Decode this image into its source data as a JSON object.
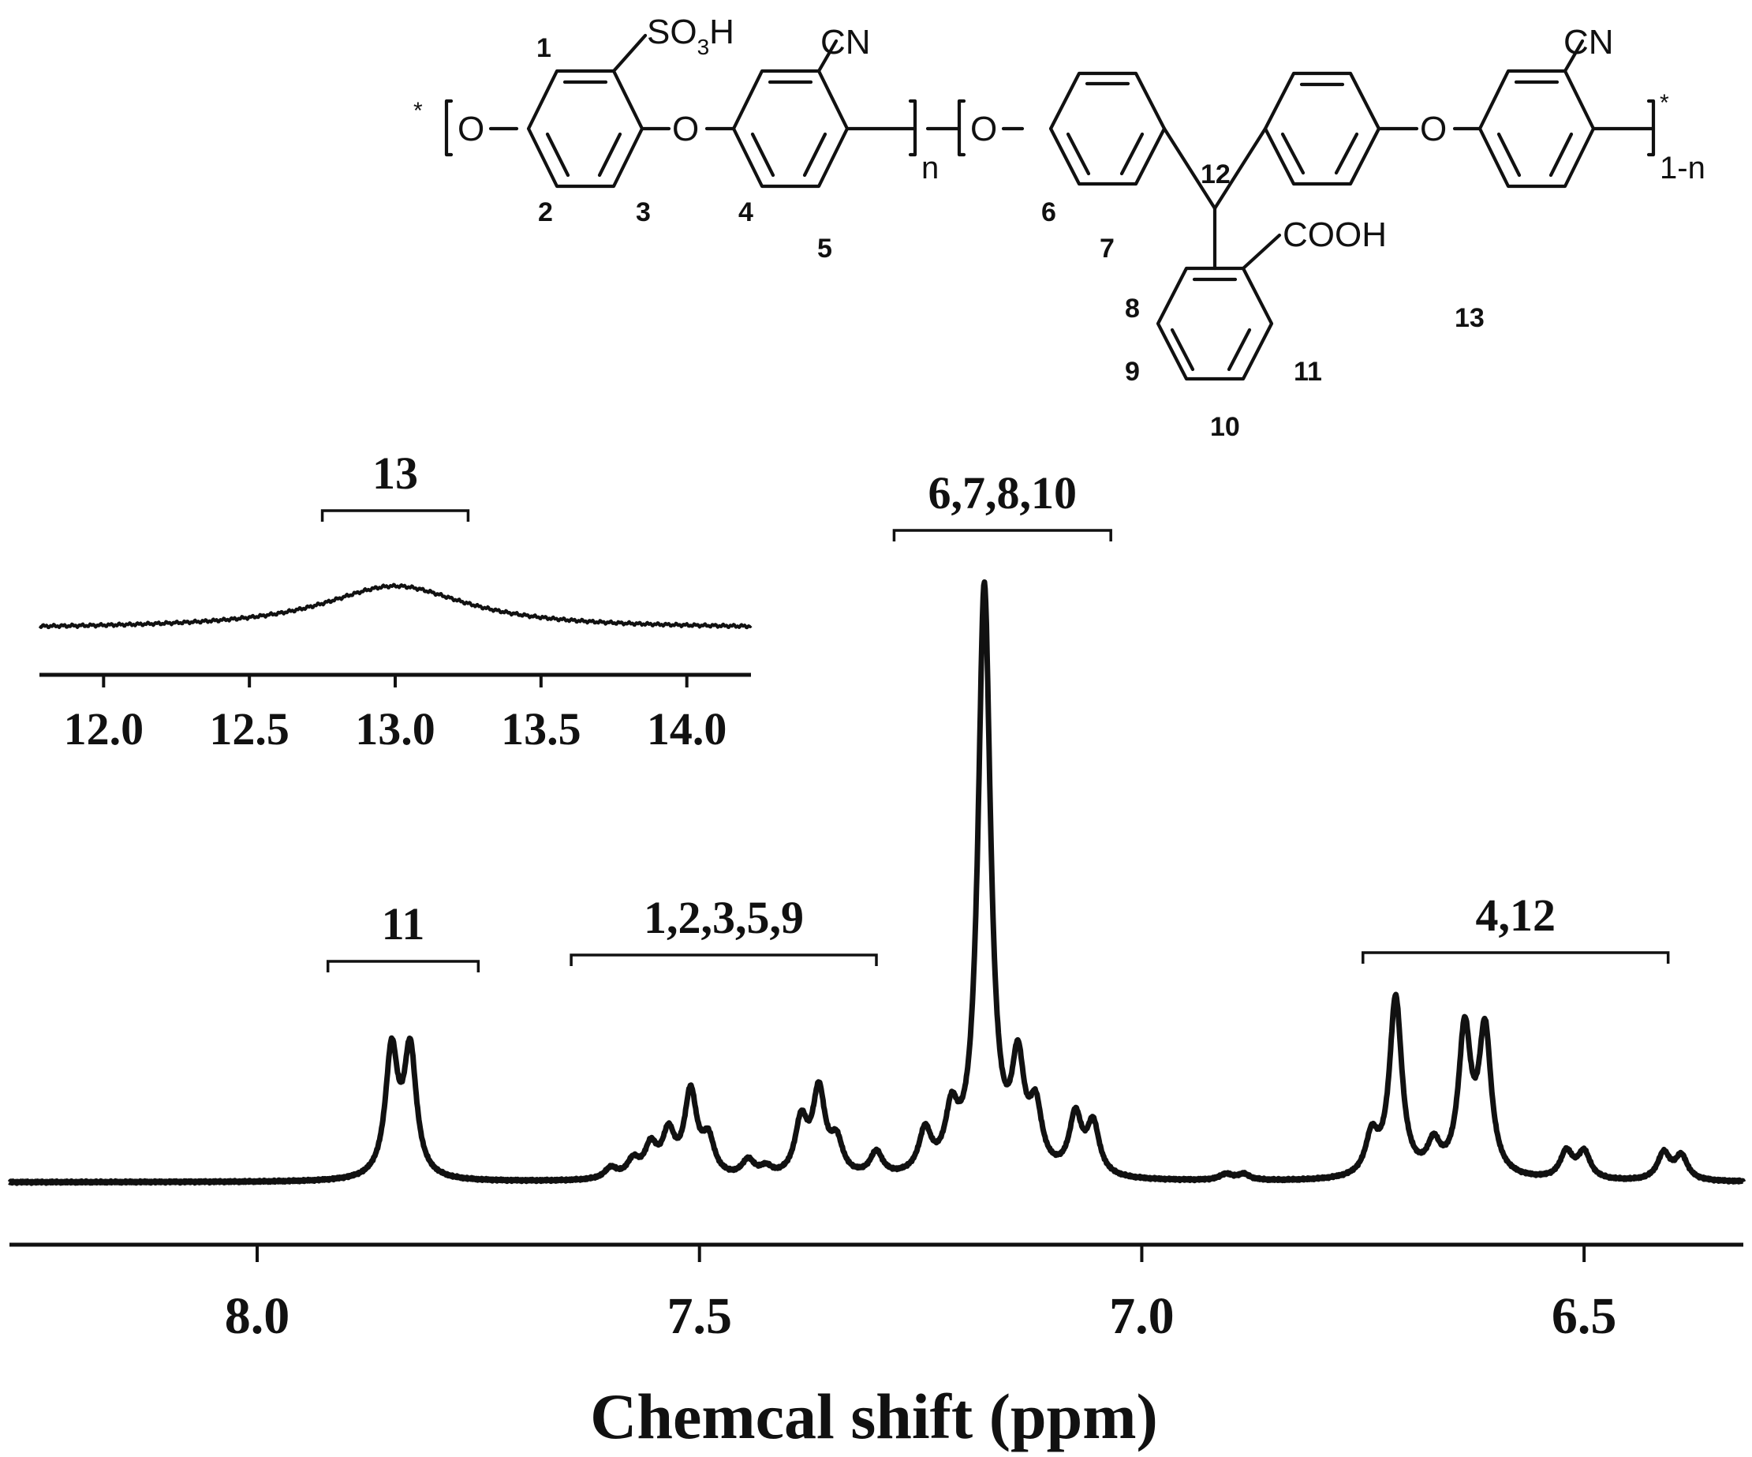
{
  "chart_data": [
    {
      "type": "line",
      "panel": "main",
      "xlabel": "Chemcal shift (ppm)",
      "x_reversed": true,
      "xlim": [
        8.28,
        6.32
      ],
      "ticks": [
        "8.0",
        "7.5",
        "7.0",
        "6.5"
      ],
      "peaks": [
        {
          "shift": 7.848,
          "intensity": 0.21
        },
        {
          "shift": 7.827,
          "intensity": 0.21
        },
        {
          "shift": 7.6,
          "intensity": 0.018
        },
        {
          "shift": 7.575,
          "intensity": 0.028
        },
        {
          "shift": 7.555,
          "intensity": 0.05
        },
        {
          "shift": 7.535,
          "intensity": 0.07
        },
        {
          "shift": 7.51,
          "intensity": 0.14
        },
        {
          "shift": 7.49,
          "intensity": 0.06
        },
        {
          "shift": 7.445,
          "intensity": 0.028
        },
        {
          "shift": 7.425,
          "intensity": 0.015
        },
        {
          "shift": 7.385,
          "intensity": 0.09
        },
        {
          "shift": 7.365,
          "intensity": 0.14
        },
        {
          "shift": 7.345,
          "intensity": 0.055
        },
        {
          "shift": 7.3,
          "intensity": 0.04
        },
        {
          "shift": 7.245,
          "intensity": 0.07
        },
        {
          "shift": 7.215,
          "intensity": 0.09
        },
        {
          "shift": 7.178,
          "intensity": 0.985
        },
        {
          "shift": 7.14,
          "intensity": 0.17
        },
        {
          "shift": 7.12,
          "intensity": 0.1
        },
        {
          "shift": 7.075,
          "intensity": 0.097
        },
        {
          "shift": 7.055,
          "intensity": 0.085
        },
        {
          "shift": 6.905,
          "intensity": 0.01
        },
        {
          "shift": 6.885,
          "intensity": 0.01
        },
        {
          "shift": 6.74,
          "intensity": 0.065
        },
        {
          "shift": 6.713,
          "intensity": 0.3
        },
        {
          "shift": 6.67,
          "intensity": 0.05
        },
        {
          "shift": 6.635,
          "intensity": 0.24
        },
        {
          "shift": 6.612,
          "intensity": 0.24
        },
        {
          "shift": 6.52,
          "intensity": 0.045
        },
        {
          "shift": 6.5,
          "intensity": 0.045
        },
        {
          "shift": 6.41,
          "intensity": 0.045
        },
        {
          "shift": 6.39,
          "intensity": 0.04
        }
      ],
      "assignments": [
        {
          "label": "11",
          "from": 7.92,
          "to": 7.75
        },
        {
          "label": "1,2,3,5,9",
          "from": 7.645,
          "to": 7.3
        },
        {
          "label": "6,7,8,10",
          "from": 7.28,
          "to": 7.035
        },
        {
          "label": "4,12",
          "from": 6.75,
          "to": 6.405
        }
      ]
    },
    {
      "type": "line",
      "panel": "inset",
      "xlim": [
        11.78,
        14.22
      ],
      "ticks": [
        "12.0",
        "12.5",
        "13.0",
        "13.5",
        "14.0"
      ],
      "peaks": [
        {
          "shift": 13.0,
          "intensity": 0.07
        }
      ],
      "assignments": [
        {
          "label": "13",
          "from": 12.75,
          "to": 13.25
        }
      ]
    }
  ],
  "structure": {
    "substituents": {
      "so3h": [
        "SO",
        "3",
        "H"
      ],
      "cn": "CN",
      "o": "O",
      "cooh": "COOH",
      "end_star": "*"
    },
    "subscripts": {
      "n": "n",
      "one_minus_n": "1-n"
    },
    "position_labels": [
      "1",
      "2",
      "3",
      "4",
      "5",
      "6",
      "7",
      "8",
      "9",
      "10",
      "11",
      "12",
      "13"
    ]
  }
}
